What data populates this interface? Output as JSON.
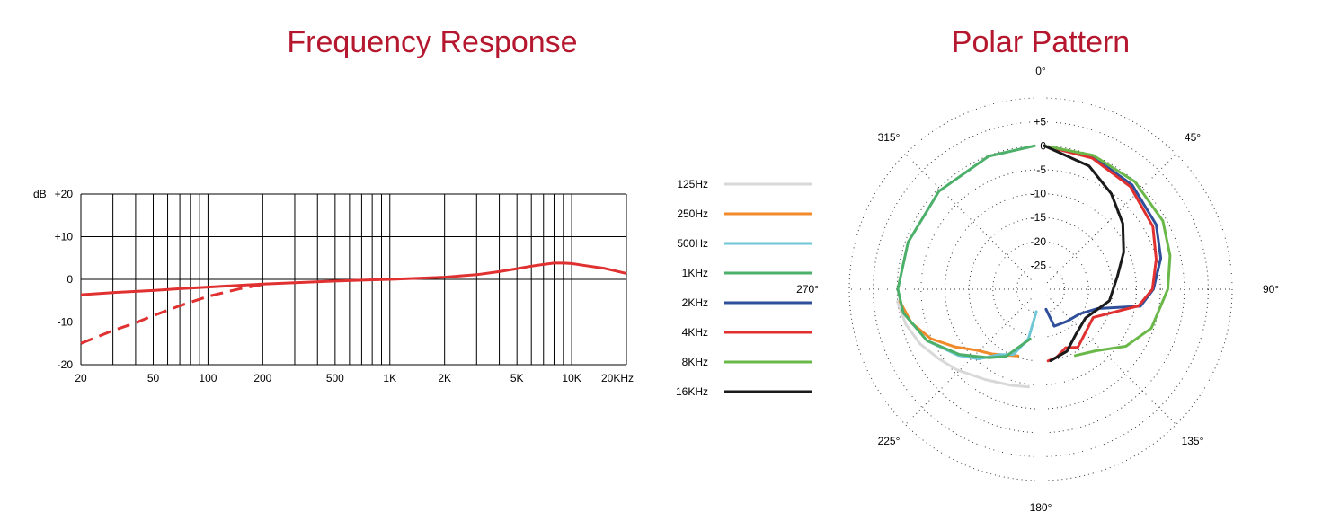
{
  "chart_data": [
    {
      "type": "line",
      "title": "Frequency Response",
      "x_scale": "log",
      "xlim": [
        20,
        20000
      ],
      "ylim": [
        -20,
        20
      ],
      "ylabel": "dB",
      "y_ticks": [
        {
          "value": 20,
          "label": "+20"
        },
        {
          "value": 10,
          "label": "+10"
        },
        {
          "value": 0,
          "label": "0"
        },
        {
          "value": -10,
          "label": "-10"
        },
        {
          "value": -20,
          "label": "-20"
        }
      ],
      "x_ticks": [
        {
          "value": 20,
          "label": "20"
        },
        {
          "value": 50,
          "label": "50"
        },
        {
          "value": 100,
          "label": "100"
        },
        {
          "value": 200,
          "label": "200"
        },
        {
          "value": 500,
          "label": "500"
        },
        {
          "value": 1000,
          "label": "1K"
        },
        {
          "value": 2000,
          "label": "2K"
        },
        {
          "value": 5000,
          "label": "5K"
        },
        {
          "value": 10000,
          "label": "10K"
        },
        {
          "value": 20000,
          "label": "20KHz"
        }
      ],
      "gridlines_x": [
        20,
        30,
        40,
        50,
        60,
        70,
        80,
        90,
        100,
        200,
        300,
        400,
        500,
        600,
        700,
        800,
        900,
        1000,
        2000,
        3000,
        4000,
        5000,
        6000,
        7000,
        8000,
        9000,
        10000,
        20000
      ],
      "grid": true,
      "series": [
        {
          "style": "solid",
          "color": "#e03030",
          "x": [
            20,
            30,
            50,
            70,
            100,
            150,
            200,
            300,
            500,
            700,
            1000,
            1500,
            2000,
            3000,
            4000,
            5000,
            6000,
            7000,
            8000,
            9000,
            10000,
            12000,
            15000,
            20000
          ],
          "y": [
            -3.6,
            -3.1,
            -2.6,
            -2.2,
            -1.8,
            -1.4,
            -1.1,
            -0.8,
            -0.4,
            -0.2,
            0,
            0.3,
            0.5,
            1.1,
            1.8,
            2.5,
            3.1,
            3.5,
            3.8,
            3.8,
            3.7,
            3.2,
            2.6,
            1.4
          ]
        },
        {
          "style": "dashed",
          "color": "#e03030",
          "x": [
            20,
            30,
            40,
            50,
            70,
            100,
            150,
            200
          ],
          "y": [
            -15,
            -12,
            -10.2,
            -8.5,
            -6.2,
            -4,
            -2.2,
            -1.2
          ]
        }
      ]
    },
    {
      "type": "polar",
      "title": "Polar Pattern",
      "angle_labels": [
        {
          "deg": 0,
          "label": "0°"
        },
        {
          "deg": 45,
          "label": "45°"
        },
        {
          "deg": 90,
          "label": "90°"
        },
        {
          "deg": 135,
          "label": "135°"
        },
        {
          "deg": 180,
          "label": "180°"
        },
        {
          "deg": 225,
          "label": "225°"
        },
        {
          "deg": 270,
          "label": "270°"
        },
        {
          "deg": 315,
          "label": "315°"
        }
      ],
      "r_ticks": [
        {
          "value": 5,
          "label": "+5"
        },
        {
          "value": 0,
          "label": "0"
        },
        {
          "value": -5,
          "label": "-5"
        },
        {
          "value": -10,
          "label": "-10"
        },
        {
          "value": -15,
          "label": "-15"
        },
        {
          "value": -20,
          "label": "-20"
        },
        {
          "value": -25,
          "label": "-25"
        }
      ],
      "r_grid": [
        10,
        5,
        0,
        -5,
        -10,
        -15,
        -20,
        -25
      ],
      "rlim": [
        -30,
        10
      ],
      "legend": [
        {
          "label": "125Hz",
          "color": "#d8d8d8"
        },
        {
          "label": "250Hz",
          "color": "#f08a2a"
        },
        {
          "label": "500Hz",
          "color": "#6ec6d6"
        },
        {
          "label": "1KHz",
          "color": "#4caf6a"
        },
        {
          "label": "2KHz",
          "color": "#2f4f9a"
        },
        {
          "label": "4KHz",
          "color": "#e03030"
        },
        {
          "label": "8KHz",
          "color": "#6ab84a"
        },
        {
          "label": "16KHz",
          "color": "#1a1a1a"
        }
      ],
      "series": [
        {
          "name": "125Hz",
          "side": "left",
          "points": [
            [
              185,
              -9.5
            ],
            [
              195,
              -9.2
            ],
            [
              210,
              -8.2
            ],
            [
              225,
              -6.2
            ],
            [
              235,
              -4.8
            ],
            [
              245,
              -3.0
            ],
            [
              255,
              -1.6
            ],
            [
              265,
              -0.7
            ]
          ]
        },
        {
          "name": "250Hz",
          "side": "left",
          "points": [
            [
              196,
              -15.5
            ],
            [
              205,
              -14.8
            ],
            [
              215,
              -13.5
            ],
            [
              225,
              -12.0
            ],
            [
              235,
              -9.0
            ],
            [
              245,
              -5.5
            ],
            [
              255,
              -2.8
            ],
            [
              265,
              -1.2
            ]
          ]
        },
        {
          "name": "500Hz",
          "side": "left",
          "points": [
            [
              182,
              -25.3
            ],
            [
              190,
              -19.5
            ],
            [
              200,
              -15.5
            ],
            [
              210,
              -14.2
            ],
            [
              220,
              -11.0
            ],
            [
              230,
              -8.5
            ],
            [
              245,
              -4.6
            ]
          ]
        },
        {
          "name": "1KHz",
          "side": "left",
          "points": [
            [
              188,
              -19.5
            ],
            [
              205,
              -14.5
            ],
            [
              215,
              -12.5
            ],
            [
              230,
              -8.8
            ],
            [
              245,
              -4.6
            ],
            [
              260,
              -1.6
            ],
            [
              270,
              -0.9
            ],
            [
              290,
              -1.3
            ],
            [
              315,
              -1.0
            ],
            [
              340,
              -0.4
            ],
            [
              359,
              0.0
            ]
          ]
        },
        {
          "name": "2KHz",
          "side": "right",
          "points": [
            [
              0,
              0
            ],
            [
              20,
              -0.5
            ],
            [
              40,
              -1.5
            ],
            [
              60,
              -3.0
            ],
            [
              75,
              -4.8
            ],
            [
              90,
              -7.2
            ],
            [
              100,
              -9.6
            ],
            [
              110,
              -18.2
            ],
            [
              125,
              -21.0
            ],
            [
              145,
              -21.8
            ],
            [
              165,
              -22.0
            ],
            [
              175,
              -25.8
            ]
          ]
        },
        {
          "name": "4KHz",
          "side": "right",
          "points": [
            [
              0,
              0
            ],
            [
              20,
              -0.8
            ],
            [
              40,
              -2.0
            ],
            [
              60,
              -3.8
            ],
            [
              75,
              -5.8
            ],
            [
              90,
              -7.4
            ],
            [
              100,
              -10.0
            ],
            [
              120,
              -18.2
            ],
            [
              150,
              -16.0
            ],
            [
              160,
              -17.0
            ],
            [
              170,
              -15.5
            ],
            [
              177,
              -15.0
            ]
          ]
        },
        {
          "name": "8KHz",
          "side": "right",
          "points": [
            [
              0,
              0
            ],
            [
              20,
              -0.2
            ],
            [
              40,
              -0.6
            ],
            [
              60,
              -1.4
            ],
            [
              75,
              -2.8
            ],
            [
              90,
              -4.2
            ],
            [
              110,
              -6.2
            ],
            [
              125,
              -9.2
            ],
            [
              140,
              -13.2
            ],
            [
              155,
              -14.7
            ]
          ]
        },
        {
          "name": "16KHz",
          "side": "right",
          "points": [
            [
              0,
              0
            ],
            [
              20,
              -2.6
            ],
            [
              35,
              -5.6
            ],
            [
              50,
              -8.6
            ],
            [
              65,
              -11.7
            ],
            [
              80,
              -14.5
            ],
            [
              100,
              -16.2
            ],
            [
              125,
              -19.5
            ],
            [
              145,
              -18.5
            ],
            [
              160,
              -16.2
            ],
            [
              175,
              -15.0
            ]
          ]
        }
      ]
    }
  ]
}
